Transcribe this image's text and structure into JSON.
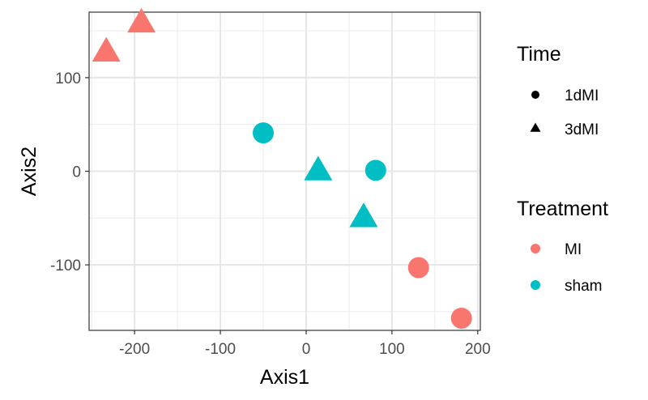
{
  "chart_data": {
    "type": "scatter",
    "xlabel": "Axis1",
    "ylabel": "Axis2",
    "xlim": [
      -253,
      203
    ],
    "ylim": [
      -170,
      170
    ],
    "x_ticks": [
      -200,
      -100,
      0,
      100,
      200
    ],
    "y_ticks": [
      -100,
      0,
      100
    ],
    "x_tick_labels": [
      "-200",
      "-100",
      "0",
      "100",
      "200"
    ],
    "y_tick_labels": [
      "-100",
      "0",
      "100"
    ],
    "grid": true,
    "legend_position": "right",
    "colors": {
      "MI": "#F8766D",
      "sham": "#00BFC4"
    },
    "points": [
      {
        "x": -192,
        "y": 157,
        "Time": "3dMI",
        "Treatment": "MI"
      },
      {
        "x": -233,
        "y": 126,
        "Time": "3dMI",
        "Treatment": "MI"
      },
      {
        "x": -50,
        "y": 41,
        "Time": "1dMI",
        "Treatment": "sham"
      },
      {
        "x": 14,
        "y": -1,
        "Time": "3dMI",
        "Treatment": "sham"
      },
      {
        "x": 81,
        "y": 1,
        "Time": "1dMI",
        "Treatment": "sham"
      },
      {
        "x": 67,
        "y": -51,
        "Time": "3dMI",
        "Treatment": "sham"
      },
      {
        "x": 131,
        "y": -103,
        "Time": "1dMI",
        "Treatment": "MI"
      },
      {
        "x": 181,
        "y": -157,
        "Time": "1dMI",
        "Treatment": "MI"
      }
    ],
    "legends": [
      {
        "title": "Time",
        "entries": [
          {
            "label": "1dMI",
            "shape": "circle"
          },
          {
            "label": "3dMI",
            "shape": "triangle"
          }
        ]
      },
      {
        "title": "Treatment",
        "entries": [
          {
            "label": "MI",
            "color": "#F8766D"
          },
          {
            "label": "sham",
            "color": "#00BFC4"
          }
        ]
      }
    ]
  }
}
